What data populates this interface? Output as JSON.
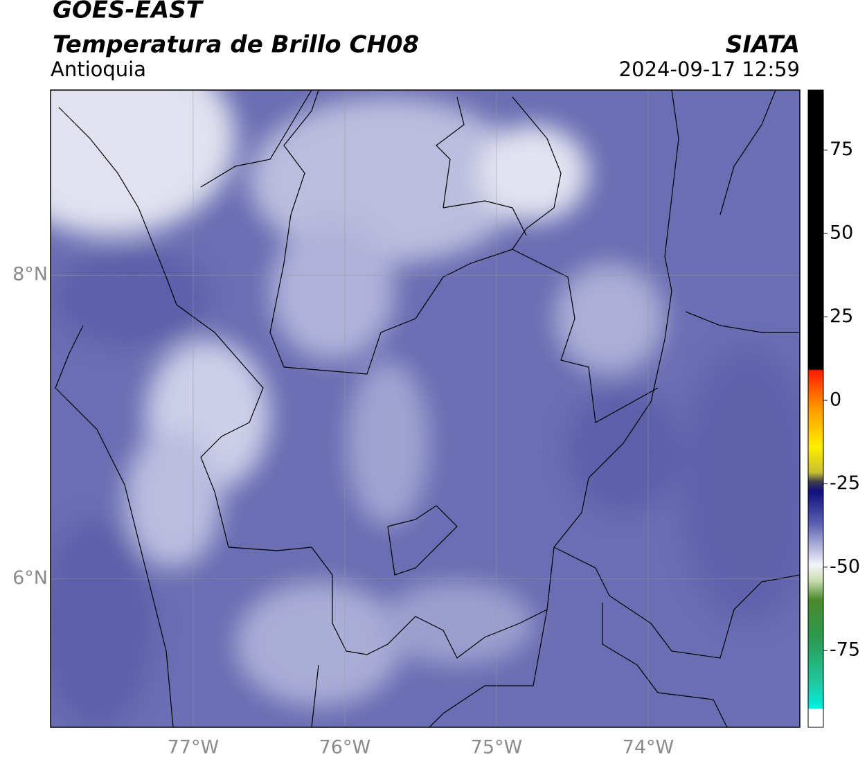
{
  "header": {
    "title": "GOES-EAST",
    "subtitle": "Temperatura de Brillo CH08",
    "region": "Antioquia",
    "source": "SIATA",
    "timestamp": "2024-09-17 12:59"
  },
  "map": {
    "lon_range": [
      -77.94,
      -73.0
    ],
    "lat_range": [
      5.02,
      9.22
    ],
    "lon_ticks": [
      {
        "value": -77,
        "label": "77°W"
      },
      {
        "value": -76,
        "label": "76°W"
      },
      {
        "value": -75,
        "label": "75°W"
      },
      {
        "value": -74,
        "label": "74°W"
      }
    ],
    "lat_ticks": [
      {
        "value": 8,
        "label": "8°N"
      },
      {
        "value": 6,
        "label": "6°N"
      }
    ]
  },
  "colorbar": {
    "range": [
      -98,
      93
    ],
    "ticks": [
      75,
      50,
      25,
      0,
      -25,
      -50,
      -75
    ]
  }
}
